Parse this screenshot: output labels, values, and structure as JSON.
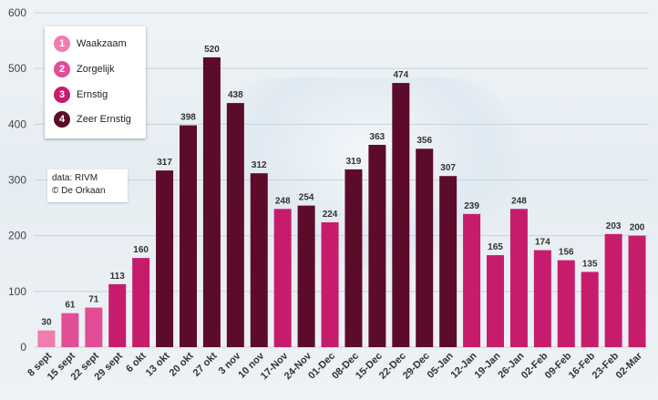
{
  "chart_data": {
    "type": "bar",
    "categories": [
      "8 sept",
      "15 sept",
      "22 sept",
      "29 sept",
      "6 okt",
      "13 okt",
      "20 okt",
      "27 okt",
      "3 nov",
      "10 nov",
      "17-Nov",
      "24-Nov",
      "01-Dec",
      "08-Dec",
      "15-Dec",
      "22-Dec",
      "29-Dec",
      "05-Jan",
      "12-Jan",
      "19-Jan",
      "26-Jan",
      "02-Feb",
      "09-Feb",
      "16-Feb",
      "23-Feb",
      "02-Mar"
    ],
    "values": [
      30,
      61,
      71,
      113,
      160,
      317,
      398,
      520,
      438,
      312,
      248,
      254,
      224,
      319,
      363,
      474,
      356,
      307,
      239,
      165,
      248,
      174,
      156,
      135,
      203,
      200
    ],
    "levels": [
      1,
      2,
      2,
      3,
      3,
      4,
      4,
      4,
      4,
      4,
      3,
      4,
      3,
      4,
      4,
      4,
      4,
      4,
      3,
      3,
      3,
      3,
      3,
      3,
      3,
      3
    ],
    "ylim": [
      0,
      600
    ],
    "yticks": [
      "0",
      "100",
      "200",
      "300",
      "400",
      "500",
      "600"
    ],
    "grid": true,
    "legend_position": "top-left",
    "legend": [
      {
        "num": "1",
        "label": "Waakzaam",
        "color": "#f07cb0"
      },
      {
        "num": "2",
        "label": "Zorgelijk",
        "color": "#e24d97"
      },
      {
        "num": "3",
        "label": "Ernstig",
        "color": "#c71c6c"
      },
      {
        "num": "4",
        "label": "Zeer Ernstig",
        "color": "#5d0b2b"
      }
    ],
    "source_lines": [
      "data: RIVM",
      "© De Orkaan"
    ]
  }
}
